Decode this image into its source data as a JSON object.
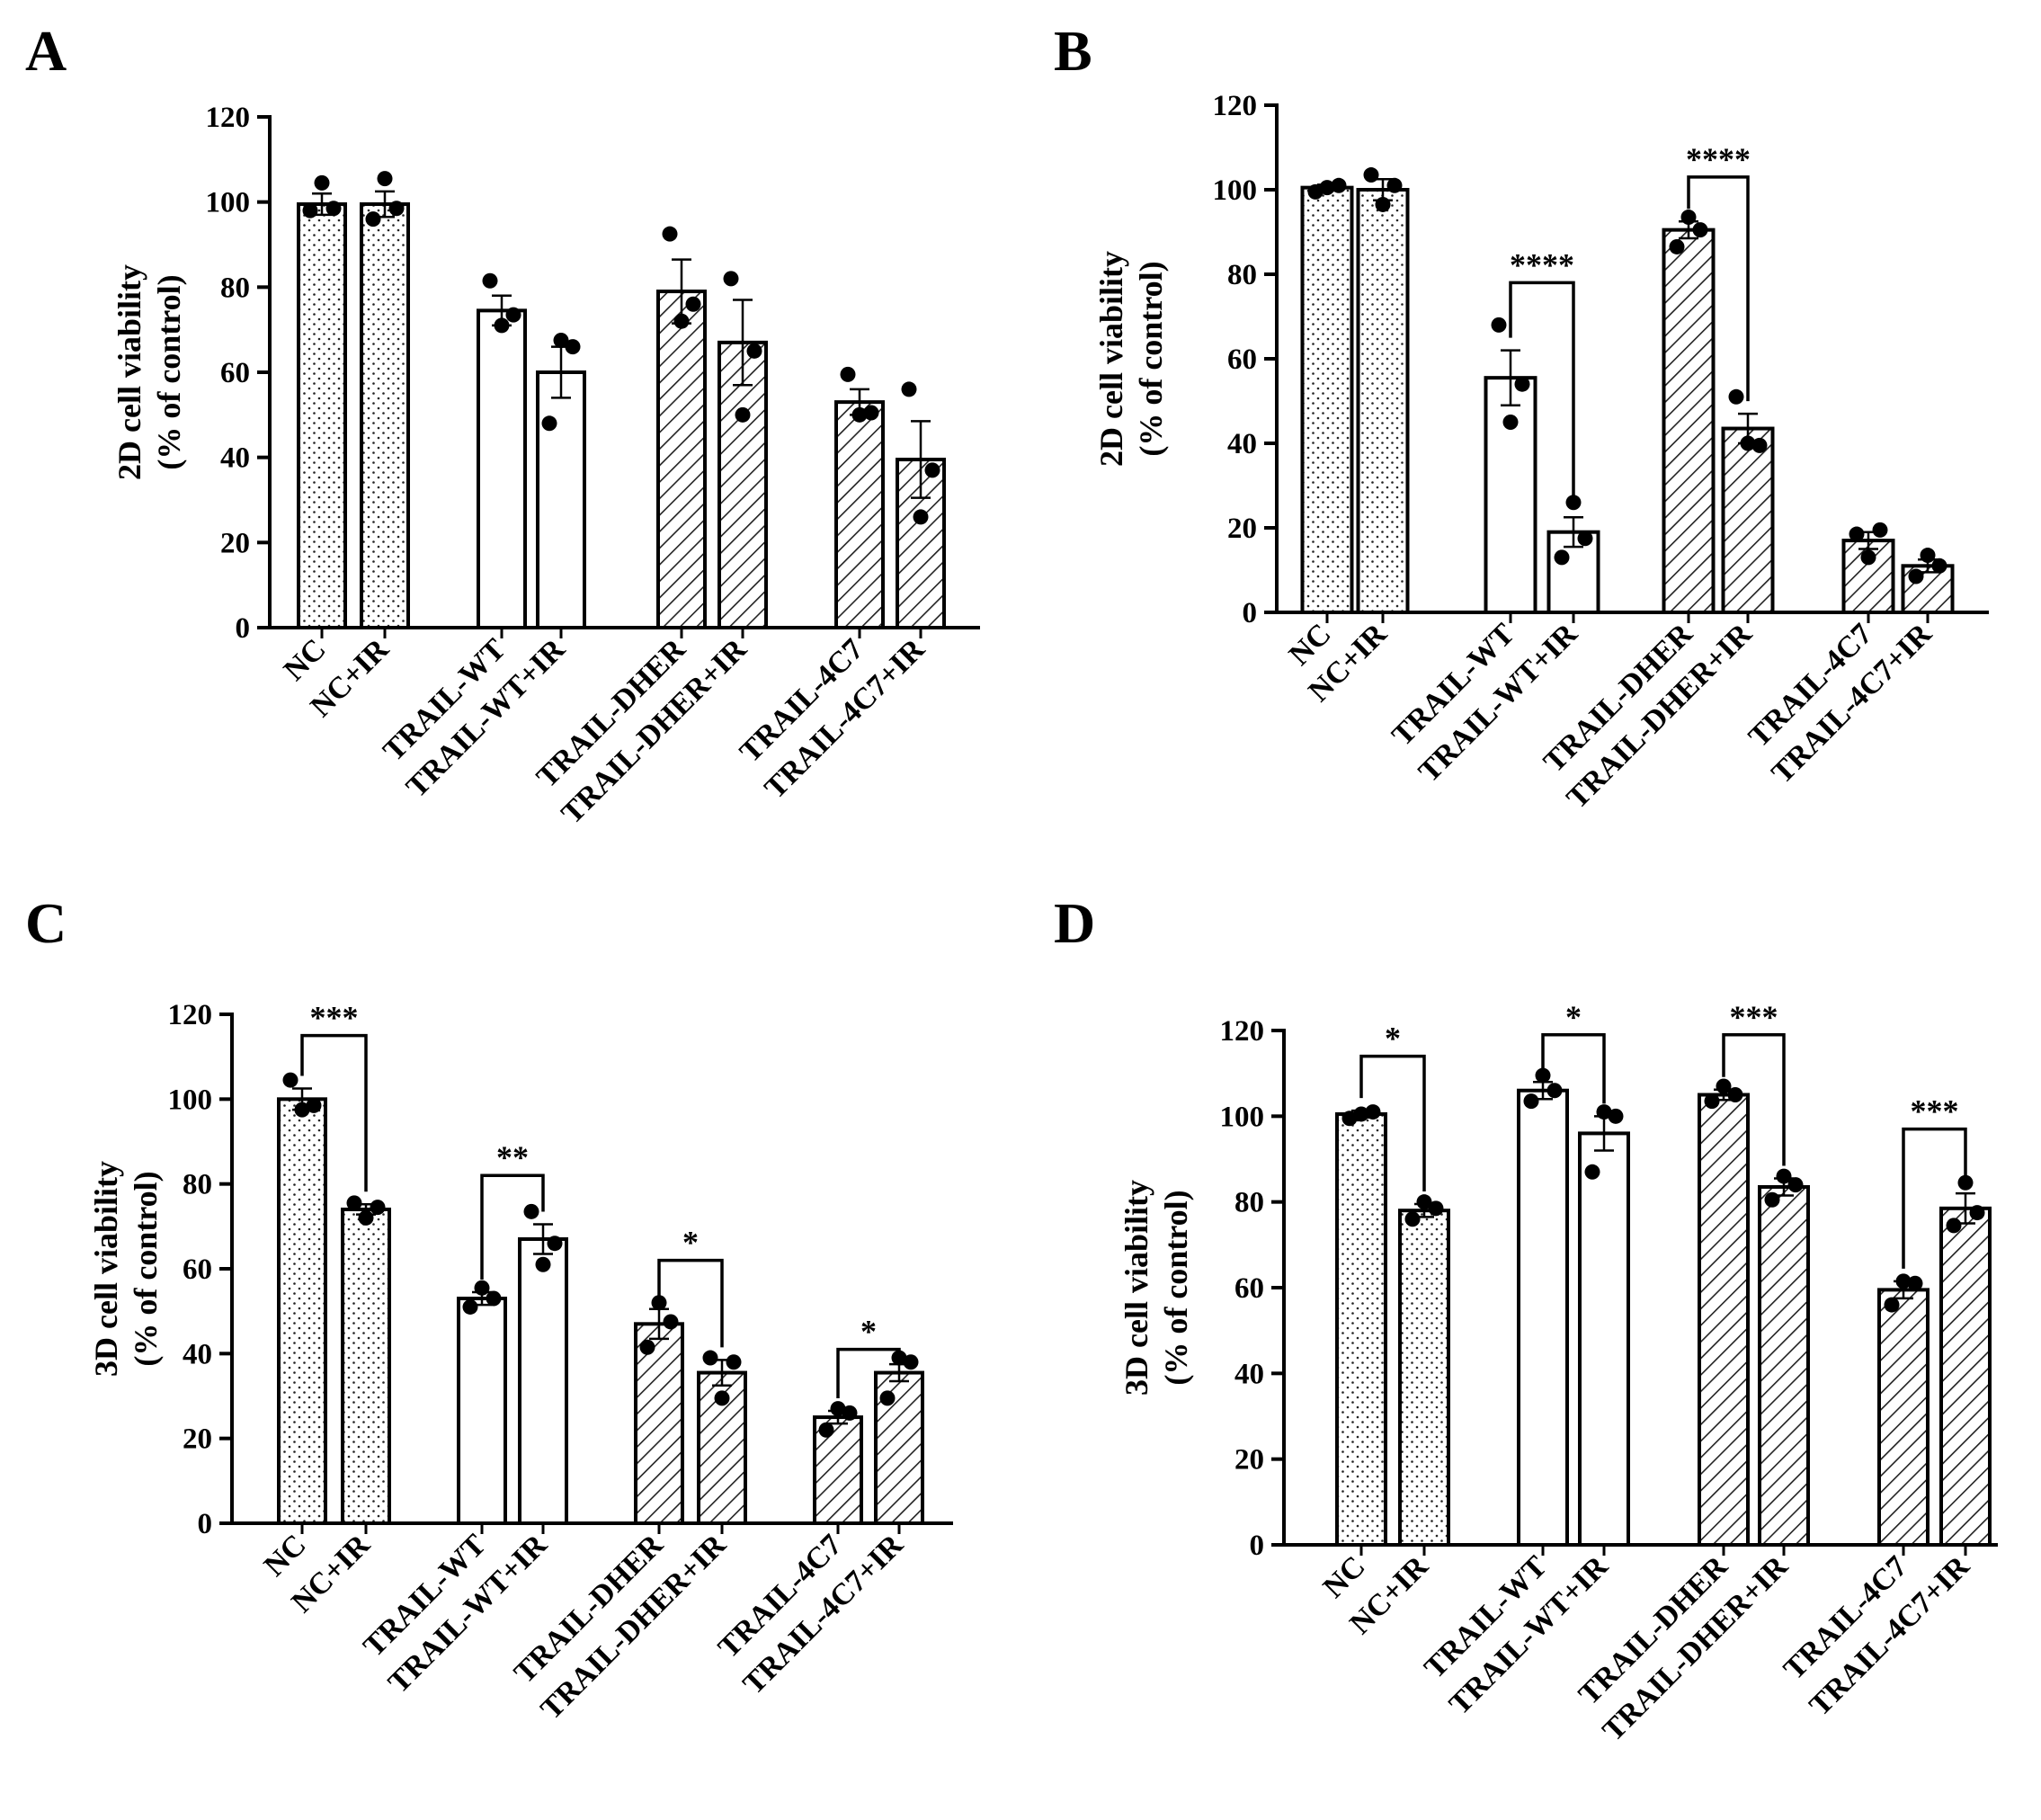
{
  "chart_data": [
    {
      "id": "A",
      "panel_label": "A",
      "type": "bar",
      "ylabel": [
        "2D cell viability",
        "(% of control)"
      ],
      "ylim": [
        0,
        120
      ],
      "yticks": [
        0,
        20,
        40,
        60,
        80,
        100,
        120
      ],
      "categories": [
        "NC",
        "NC+IR",
        "TRAIL-WT",
        "TRAIL-WT+IR",
        "TRAIL-DHER",
        "TRAIL-DHER+IR",
        "TRAIL-4C7",
        "TRAIL-4C7+IR"
      ],
      "patterns": [
        "dots",
        "dots",
        "open",
        "open",
        "hatch",
        "hatch",
        "hatch",
        "hatch"
      ],
      "values": [
        99.5,
        99.5,
        74.5,
        60,
        79,
        67,
        53,
        39.5
      ],
      "errors": [
        2.5,
        3,
        3.5,
        6,
        7.5,
        10,
        3,
        9
      ],
      "points": [
        [
          98,
          104.5,
          98.5
        ],
        [
          96,
          105.5,
          98.5
        ],
        [
          81.5,
          71,
          73.5
        ],
        [
          48,
          67.5,
          66
        ],
        [
          92.5,
          72,
          76
        ],
        [
          82,
          50,
          65
        ],
        [
          59.5,
          50,
          50.5
        ],
        [
          56,
          26,
          37
        ]
      ],
      "significance": []
    },
    {
      "id": "B",
      "panel_label": "B",
      "type": "bar",
      "ylabel": [
        "2D cell viability",
        "(% of control)"
      ],
      "ylim": [
        0,
        120
      ],
      "yticks": [
        0,
        20,
        40,
        60,
        80,
        100,
        120
      ],
      "categories": [
        "NC",
        "NC+IR",
        "TRAIL-WT",
        "TRAIL-WT+IR",
        "TRAIL-DHER",
        "TRAIL-DHER+IR",
        "TRAIL-4C7",
        "TRAIL-4C7+IR"
      ],
      "patterns": [
        "dots",
        "dots",
        "open",
        "open",
        "hatch",
        "hatch",
        "hatch",
        "hatch"
      ],
      "values": [
        100.5,
        100,
        55.5,
        19,
        90.5,
        43.5,
        17,
        11
      ],
      "errors": [
        0.7,
        2.5,
        6.5,
        3.5,
        2,
        3.5,
        2,
        1.5
      ],
      "points": [
        [
          99.5,
          100.5,
          101
        ],
        [
          103.5,
          96.5,
          101
        ],
        [
          68,
          45,
          54
        ],
        [
          13,
          26,
          17.5
        ],
        [
          86.5,
          93.5,
          90.5
        ],
        [
          51,
          40,
          39.5
        ],
        [
          18.5,
          13,
          19.5
        ],
        [
          8.5,
          13.5,
          11
        ]
      ],
      "significance": [
        {
          "from": 2,
          "to": 3,
          "label": "****",
          "y": 78
        },
        {
          "from": 4,
          "to": 5,
          "label": "****",
          "y": 103
        }
      ]
    },
    {
      "id": "C",
      "panel_label": "C",
      "type": "bar",
      "ylabel": [
        "3D cell viability",
        "(% of control)"
      ],
      "ylim": [
        0,
        120
      ],
      "yticks": [
        0,
        20,
        40,
        60,
        80,
        100,
        120
      ],
      "categories": [
        "NC",
        "NC+IR",
        "TRAIL-WT",
        "TRAIL-WT+IR",
        "TRAIL-DHER",
        "TRAIL-DHER+IR",
        "TRAIL-4C7",
        "TRAIL-4C7+IR"
      ],
      "patterns": [
        "dots",
        "dots",
        "open",
        "open",
        "hatch",
        "hatch",
        "hatch",
        "hatch"
      ],
      "values": [
        100,
        74,
        53,
        67,
        47,
        35.5,
        25,
        35.5
      ],
      "errors": [
        2.5,
        1.2,
        1.5,
        3.5,
        3.5,
        3,
        1.5,
        2
      ],
      "points": [
        [
          104.5,
          97.5,
          98.5
        ],
        [
          75.5,
          72,
          74.5
        ],
        [
          51,
          55.5,
          53
        ],
        [
          73.5,
          61,
          66
        ],
        [
          41.5,
          52,
          47.5
        ],
        [
          39,
          29.5,
          38
        ],
        [
          22,
          27,
          26
        ],
        [
          29.5,
          39,
          38
        ]
      ],
      "significance": [
        {
          "from": 0,
          "to": 1,
          "label": "***",
          "y": 115
        },
        {
          "from": 2,
          "to": 3,
          "label": "**",
          "y": 82
        },
        {
          "from": 4,
          "to": 5,
          "label": "*",
          "y": 62
        },
        {
          "from": 6,
          "to": 7,
          "label": "*",
          "y": 41
        }
      ]
    },
    {
      "id": "D",
      "panel_label": "D",
      "type": "bar",
      "ylabel": [
        "3D cell viability",
        "(% of control)"
      ],
      "ylim": [
        0,
        120
      ],
      "yticks": [
        0,
        20,
        40,
        60,
        80,
        100,
        120
      ],
      "categories": [
        "NC",
        "NC+IR",
        "TRAIL-WT",
        "TRAIL-WT+IR",
        "TRAIL-DHER",
        "TRAIL-DHER+IR",
        "TRAIL-4C7",
        "TRAIL-4C7+IR"
      ],
      "patterns": [
        "dots",
        "dots",
        "open",
        "open",
        "hatch",
        "hatch",
        "hatch",
        "hatch"
      ],
      "values": [
        100.5,
        78,
        106,
        96,
        105,
        83.5,
        59.5,
        78.5
      ],
      "errors": [
        0.8,
        1.5,
        2,
        4,
        1.2,
        2,
        2,
        3.5
      ],
      "points": [
        [
          99.5,
          100.5,
          101
        ],
        [
          76,
          80,
          78.5
        ],
        [
          103.5,
          109.5,
          106
        ],
        [
          87,
          101,
          100
        ],
        [
          103.5,
          107,
          105
        ],
        [
          80.5,
          86,
          84
        ],
        [
          56,
          61.5,
          61
        ],
        [
          74.5,
          84.5,
          77.5
        ]
      ],
      "significance": [
        {
          "from": 0,
          "to": 1,
          "label": "*",
          "y": 114
        },
        {
          "from": 2,
          "to": 3,
          "label": "*",
          "y": 119
        },
        {
          "from": 4,
          "to": 5,
          "label": "***",
          "y": 119
        },
        {
          "from": 6,
          "to": 7,
          "label": "***",
          "y": 97
        }
      ]
    }
  ]
}
